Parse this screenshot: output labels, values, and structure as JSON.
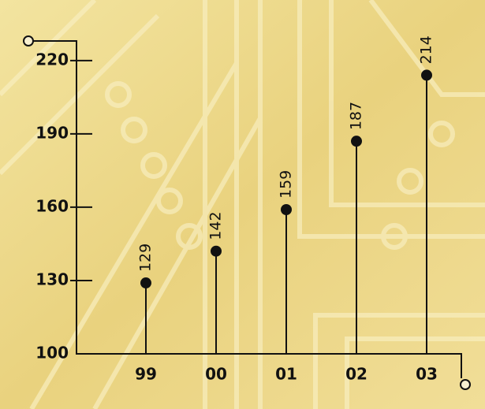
{
  "chart_data": {
    "type": "lollipop",
    "categories": [
      "99",
      "00",
      "01",
      "02",
      "03"
    ],
    "values": [
      129,
      142,
      159,
      187,
      214
    ],
    "color": "#111111",
    "ylim": [
      100,
      228
    ],
    "yticks": [
      100,
      130,
      160,
      190,
      220
    ]
  }
}
